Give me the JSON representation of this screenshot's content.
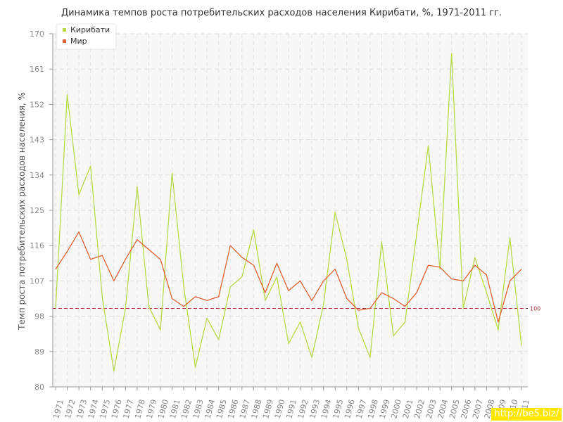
{
  "chart_data": {
    "type": "line",
    "title": "Динамика темпов роста потребительских расходов населения Кирибати, %, 1971-2011 гг.",
    "xlabel": "",
    "ylabel": "Темп роста потребительских расходов населения, %",
    "ylim": [
      80,
      170
    ],
    "yticks": [
      80,
      89,
      98,
      107,
      116,
      125,
      134,
      143,
      152,
      161,
      170
    ],
    "grid": true,
    "legend_position": "top-left",
    "reference_line": {
      "value": 100,
      "label": "100",
      "color": "#a0303a"
    },
    "x": [
      "1971",
      "1972",
      "1973",
      "1974",
      "1975",
      "1976",
      "1977",
      "1978",
      "1979",
      "1980",
      "1981",
      "1982",
      "1983",
      "1984",
      "1985",
      "1986",
      "1987",
      "1988",
      "1989",
      "1990",
      "1991",
      "1992",
      "1993",
      "1994",
      "1995",
      "1996",
      "1997",
      "1998",
      "1999",
      "2000",
      "2001",
      "2002",
      "2003",
      "2004",
      "2005",
      "2006",
      "2007",
      "2008",
      "2009",
      "2010",
      "2011"
    ],
    "series": [
      {
        "name": "Кирибати",
        "color": "#b8d94a",
        "values": [
          100,
          154.5,
          129,
          136.3,
          103,
          84,
          100,
          131,
          100.5,
          94.5,
          134.5,
          105.5,
          85,
          97.5,
          92,
          105.5,
          108,
          120,
          102,
          108,
          91,
          96.5,
          87.5,
          101,
          124.5,
          112.5,
          95,
          87.5,
          117,
          93,
          96.5,
          119,
          141.5,
          110,
          165,
          100,
          113,
          104,
          94.5,
          118,
          90.5
        ]
      },
      {
        "name": "Мир",
        "color": "#e06030",
        "values": [
          110,
          114.5,
          119.5,
          112.5,
          113.5,
          107,
          112.5,
          117.5,
          115,
          112.5,
          102.5,
          100.5,
          103,
          102,
          103,
          116,
          113,
          111,
          104,
          111.5,
          104.5,
          107,
          102,
          107,
          110,
          102.5,
          99.5,
          100,
          104,
          102.5,
          100.5,
          104,
          111,
          110.5,
          107.5,
          107,
          111,
          108.5,
          96.5,
          107,
          110
        ]
      }
    ]
  },
  "watermark": {
    "text": "http://be5.biz/"
  }
}
